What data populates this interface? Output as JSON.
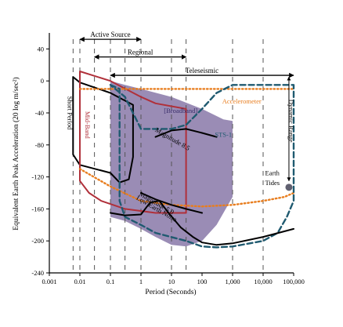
{
  "chart_data": {
    "type": "line",
    "xlabel": "Period (Seconds)",
    "ylabel": "Equivalent Earth Peak Acceleration (20 log m/sec²)",
    "x_scale": "log",
    "xlim": [
      0.001,
      100000
    ],
    "ylim": [
      -240,
      60
    ],
    "x_ticks": [
      {
        "value": 0.001,
        "label": "0.001"
      },
      {
        "value": 0.01,
        "label": "0.01"
      },
      {
        "value": 0.1,
        "label": "0.1"
      },
      {
        "value": 1,
        "label": "1"
      },
      {
        "value": 10,
        "label": "10"
      },
      {
        "value": 100,
        "label": "100"
      },
      {
        "value": 1000,
        "label": "1,000"
      },
      {
        "value": 10000,
        "label": "10,000"
      },
      {
        "value": 100000,
        "label": "100,000"
      }
    ],
    "y_ticks": [
      {
        "value": 40,
        "label": "40"
      },
      {
        "value": 0,
        "label": "0"
      },
      {
        "value": -40,
        "label": "-40"
      },
      {
        "value": -80,
        "label": "-80"
      },
      {
        "value": -120,
        "label": "-120"
      },
      {
        "value": -160,
        "label": "-160"
      },
      {
        "value": -200,
        "label": "-200"
      },
      {
        "value": -240,
        "label": "-240"
      }
    ],
    "dashed_verticals": [
      0.006,
      0.01,
      0.03,
      0.1,
      0.3,
      1,
      10,
      30,
      1000,
      10000
    ],
    "range_arrows": [
      {
        "label": "Active Source",
        "from": 0.01,
        "to": 1,
        "y": 52
      },
      {
        "label": "Regional",
        "from": 0.03,
        "to": 30,
        "y": 30
      },
      {
        "label": "Teleseismic",
        "from": 0.1,
        "to": 100000,
        "y": 7
      }
    ],
    "regions": [
      {
        "name": "Broadband",
        "color": "#8878a8",
        "points": [
          [
            0.1,
            0
          ],
          [
            0.3,
            -5
          ],
          [
            1,
            -10
          ],
          [
            10,
            -20
          ],
          [
            100,
            -35
          ],
          [
            500,
            -48
          ],
          [
            1000,
            -50
          ],
          [
            1000,
            -145
          ],
          [
            300,
            -180
          ],
          [
            100,
            -200
          ],
          [
            30,
            -207
          ],
          [
            10,
            -205
          ],
          [
            3,
            -195
          ],
          [
            1,
            -185
          ],
          [
            0.3,
            -175
          ],
          [
            0.1,
            -170
          ]
        ]
      }
    ],
    "series": [
      {
        "name": "Short Period",
        "color": "#000000",
        "style": "solid",
        "points": [
          [
            0.006,
            5
          ],
          [
            0.01,
            -2
          ],
          [
            0.1,
            -15
          ],
          [
            0.55,
            -30
          ],
          [
            0.55,
            -95
          ],
          [
            0.4,
            -123
          ],
          [
            0.2,
            -127
          ],
          [
            0.1,
            -115
          ],
          [
            0.01,
            -105
          ],
          [
            0.006,
            -92
          ],
          [
            0.006,
            5
          ]
        ]
      },
      {
        "name": "Mid-Band",
        "color": "#b0303a",
        "style": "solid",
        "points": [
          [
            0.01,
            12
          ],
          [
            0.1,
            0
          ],
          [
            1,
            -20
          ],
          [
            3,
            -28
          ],
          [
            30,
            -35
          ],
          [
            30,
            -90
          ],
          [
            30,
            -165
          ],
          [
            3,
            -165
          ],
          [
            0.3,
            -160
          ],
          [
            0.05,
            -150
          ],
          [
            0.02,
            -140
          ],
          [
            0.01,
            -125
          ],
          [
            0.01,
            12
          ]
        ]
      },
      {
        "name": "Accelerometer",
        "color": "#e87d1e",
        "style": "dotted",
        "points": [
          [
            0.01,
            -10
          ],
          [
            100000,
            -10
          ]
        ]
      },
      {
        "name": "Accelerometer (low)",
        "color": "#e87d1e",
        "style": "dotted",
        "points": [
          [
            0.01,
            -110
          ],
          [
            0.1,
            -132
          ],
          [
            1,
            -150
          ],
          [
            10,
            -155
          ],
          [
            100,
            -157
          ],
          [
            1000,
            -155
          ],
          [
            10000,
            -150
          ],
          [
            50000,
            -145
          ],
          [
            100000,
            -140
          ]
        ]
      },
      {
        "name": "STS-1",
        "color": "#1f5a70",
        "style": "dashed",
        "points": [
          [
            0.1,
            -5
          ],
          [
            0.2,
            -10
          ],
          [
            0.2,
            -150
          ],
          [
            0.3,
            -170
          ],
          [
            1,
            -180
          ],
          [
            3,
            -190
          ],
          [
            30,
            -200
          ],
          [
            100,
            -207
          ],
          [
            300,
            -208
          ],
          [
            1000,
            -207
          ],
          [
            10000,
            -200
          ],
          [
            30000,
            -190
          ],
          [
            60000,
            -170
          ],
          [
            100000,
            -150
          ],
          [
            100000,
            -10
          ],
          [
            100000,
            -5
          ],
          [
            1000,
            -5
          ],
          [
            300,
            -15
          ],
          [
            100,
            -35
          ],
          [
            30,
            -55
          ],
          [
            10,
            -60
          ],
          [
            1,
            -60
          ],
          [
            0.3,
            -20
          ],
          [
            0.1,
            -5
          ]
        ]
      },
      {
        "name": "Magnitude 8.5",
        "color": "#000000",
        "style": "solid",
        "points": [
          [
            3,
            -70
          ],
          [
            10,
            -62
          ],
          [
            30,
            -60
          ],
          [
            100,
            -65
          ],
          [
            300,
            -70
          ]
        ]
      },
      {
        "name": "Magnitude 5.0",
        "color": "#000000",
        "style": "solid",
        "points": [
          [
            1,
            -140
          ],
          [
            3,
            -148
          ],
          [
            10,
            -155
          ],
          [
            30,
            -160
          ],
          [
            100,
            -165
          ]
        ]
      },
      {
        "name": "Low Earth Noise",
        "color": "#000000",
        "style": "solid",
        "points": [
          [
            0.1,
            -165
          ],
          [
            0.3,
            -168
          ],
          [
            1,
            -167
          ],
          [
            2,
            -152
          ],
          [
            4,
            -150
          ],
          [
            8,
            -165
          ],
          [
            20,
            -183
          ],
          [
            50,
            -195
          ],
          [
            100,
            -202
          ],
          [
            300,
            -205
          ],
          [
            1000,
            -203
          ],
          [
            10000,
            -195
          ],
          [
            100000,
            -185
          ]
        ]
      }
    ],
    "earth_tides_marker": {
      "x": 70000,
      "y": -133,
      "color": "#606070"
    },
    "annotations": [
      {
        "text": "Short Period",
        "x": 0.004,
        "y": -40,
        "rotate": 90,
        "color": "#000000"
      },
      {
        "text": "Mid-Band",
        "x": 0.015,
        "y": -55,
        "rotate": 90,
        "color": "#b0303a"
      },
      {
        "text": "[Broadband]",
        "x": 20,
        "y": -40,
        "rotate": 0,
        "color": "#3a2e6a"
      },
      {
        "text": "Magnitude 8.5",
        "x": 10,
        "y": -75,
        "rotate": 30,
        "color": "#000000"
      },
      {
        "text": "Accelerometer",
        "x": 2000,
        "y": -28,
        "rotate": 0,
        "color": "#e87d1e"
      },
      {
        "text": "STS-1",
        "x": 500,
        "y": -70,
        "rotate": 0,
        "color": "#1f5a70"
      },
      {
        "text": "Magnitude 5.0",
        "x": 3,
        "y": -155,
        "rotate": 30,
        "color": "#000000"
      },
      {
        "text": "Low Earth Noise",
        "x": 3,
        "y": -162,
        "rotate": 30,
        "color": "#000000"
      },
      {
        "text": "Earth",
        "x": 20000,
        "y": -118,
        "rotate": 0,
        "color": "#000000"
      },
      {
        "text": "Tides",
        "x": 20000,
        "y": -130,
        "rotate": 0,
        "color": "#000000"
      },
      {
        "text": "Dynamic Range",
        "x": 70000,
        "y": -50,
        "rotate": 90,
        "color": "#000000"
      }
    ]
  }
}
